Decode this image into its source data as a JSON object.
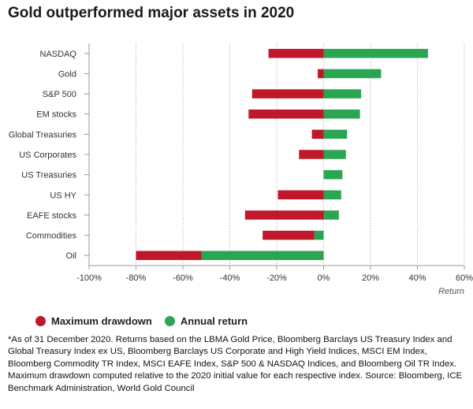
{
  "title": "Gold outperformed major assets in 2020",
  "legend": {
    "drawdown_label": "Maximum drawdown",
    "return_label": "Annual return"
  },
  "footnote": "*As of 31 December 2020. Returns based on the LBMA Gold Price, Bloomberg Barclays US Treasury Index and Global Treasury Index ex US, Bloomberg Barclays US Corporate and High Yield Indices, MSCI EM Index, Bloomberg Commodity TR Index, MSCI EAFE Index, S&P 500 & NASDAQ Indices, and Bloomberg Oil TR Index. Maximum drawdown computed relative to the 2020 initial value for each respective index. Source: Bloomberg, ICE Benchmark Administration, World Gold Council",
  "chart_data": {
    "type": "bar",
    "orientation": "horizontal",
    "title": "Gold outperformed major assets in 2020",
    "xlabel": "Return",
    "xlim": [
      -100,
      60
    ],
    "xticks": [
      -100,
      -80,
      -60,
      -40,
      -20,
      0,
      20,
      40,
      60
    ],
    "tick_suffix": "%",
    "grid": "vertical dotted",
    "legend_position": "bottom-left",
    "categories": [
      "NASDAQ",
      "Gold",
      "S&P 500",
      "EM stocks",
      "Global Treasuries",
      "US Corporates",
      "US Treasuries",
      "US HY",
      "EAFE stocks",
      "Commodities",
      "Oil"
    ],
    "series": [
      {
        "name": "Maximum drawdown",
        "color": "#c0182a",
        "values": [
          -23.5,
          -2.5,
          -30.5,
          -32,
          -5,
          -10.5,
          0,
          -19.5,
          -33.5,
          -26,
          -80
        ]
      },
      {
        "name": "Annual return",
        "color": "#2aa551",
        "values": [
          44.5,
          24.5,
          16,
          15.5,
          10,
          9.5,
          8,
          7.5,
          6.5,
          -4,
          -52
        ]
      }
    ]
  }
}
